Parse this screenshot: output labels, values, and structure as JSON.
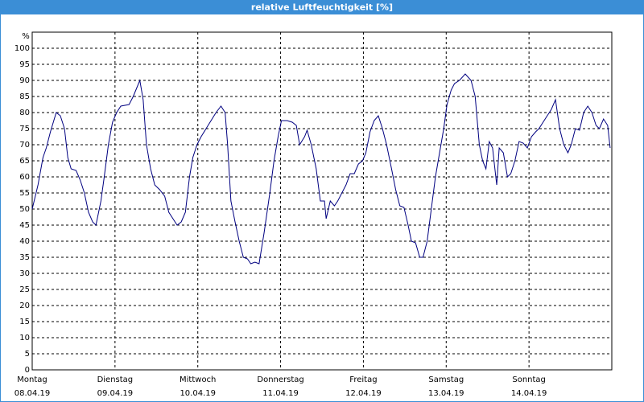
{
  "chart_data": {
    "type": "line",
    "title": "relative Luftfeuchtigkeit [%]",
    "ylabel": "%",
    "xlim": [
      0,
      7
    ],
    "ylim": [
      0,
      105
    ],
    "xticks": [
      {
        "value": 0,
        "label": "Montag"
      },
      {
        "value": 1,
        "label": "Dienstag"
      },
      {
        "value": 2,
        "label": "Mittwoch"
      },
      {
        "value": 3,
        "label": "Donnerstag"
      },
      {
        "value": 4,
        "label": "Freitag"
      },
      {
        "value": 5,
        "label": "Samstag"
      },
      {
        "value": 6,
        "label": "Sonntag"
      }
    ],
    "xtick_dates": [
      "08.04.19",
      "09.04.19",
      "10.04.19",
      "11.04.19",
      "12.04.19",
      "13.04.19",
      "14.04.19"
    ],
    "yticks": [
      0,
      5,
      10,
      15,
      20,
      25,
      30,
      35,
      40,
      45,
      50,
      55,
      60,
      65,
      70,
      75,
      80,
      85,
      90,
      95,
      100
    ],
    "grid": true,
    "series": [
      {
        "color": "#000080",
        "x": [
          0,
          0.07,
          0.13,
          0.17,
          0.22,
          0.29,
          0.34,
          0.39,
          0.43,
          0.47,
          0.53,
          0.58,
          0.63,
          0.68,
          0.73,
          0.77,
          0.83,
          0.87,
          0.92,
          0.97,
          1.02,
          1.07,
          1.17,
          1.22,
          1.26,
          1.3,
          1.34,
          1.38,
          1.43,
          1.48,
          1.54,
          1.6,
          1.65,
          1.7,
          1.75,
          1.8,
          1.85,
          1.9,
          1.94,
          1.99,
          2.04,
          2.1,
          2.16,
          2.22,
          2.28,
          2.33,
          2.36,
          2.4,
          2.45,
          2.5,
          2.55,
          2.6,
          2.64,
          2.69,
          2.74,
          2.8,
          2.87,
          2.92,
          2.97,
          3.01,
          3.08,
          3.14,
          3.19,
          3.23,
          3.29,
          3.32,
          3.37,
          3.43,
          3.48,
          3.53,
          3.55,
          3.6,
          3.65,
          3.69,
          3.74,
          3.79,
          3.84,
          3.89,
          3.94,
          3.99,
          4.03,
          4.08,
          4.13,
          4.18,
          4.23,
          4.28,
          4.34,
          4.39,
          4.44,
          4.49,
          4.54,
          4.58,
          4.63,
          4.68,
          4.72,
          4.77,
          4.82,
          4.87,
          4.92,
          4.97,
          5.01,
          5.06,
          5.1,
          5.16,
          5.23,
          5.3,
          5.35,
          5.4,
          5.44,
          5.48,
          5.52,
          5.56,
          5.61,
          5.64,
          5.69,
          5.74,
          5.78,
          5.83,
          5.88,
          5.93,
          5.98,
          6.03,
          6.08,
          6.12,
          6.17,
          6.22,
          6.27,
          6.32,
          6.37,
          6.42,
          6.47,
          6.51,
          6.56,
          6.61,
          6.66,
          6.71,
          6.76,
          6.81,
          6.85,
          6.9,
          6.95,
          6.98
        ],
        "values": [
          50,
          57.5,
          66,
          69,
          74,
          80,
          79,
          75,
          66,
          62.5,
          62,
          59,
          55,
          49,
          46,
          45,
          52.5,
          60,
          70,
          77,
          80,
          82,
          82.5,
          85,
          87.5,
          90,
          84,
          70,
          62.5,
          57.5,
          56,
          54,
          49,
          47,
          45,
          46,
          49,
          60,
          66,
          70,
          72.5,
          75,
          77.5,
          80,
          82,
          80,
          70,
          52.5,
          46,
          40,
          35,
          34.5,
          33,
          33.5,
          33,
          42.5,
          55,
          65,
          72.5,
          77.5,
          77.5,
          77,
          76,
          70,
          72.5,
          74.5,
          70,
          62.5,
          52.5,
          52.5,
          47,
          52.5,
          51,
          52.5,
          55,
          57.5,
          61,
          61,
          64,
          65,
          67.5,
          74,
          77.5,
          79,
          75,
          70,
          62.5,
          56,
          51,
          50.5,
          45,
          40,
          39.5,
          35,
          35,
          40,
          50,
          60,
          67.5,
          75,
          82.5,
          87,
          89,
          90,
          92,
          90,
          85,
          70,
          65,
          62.5,
          71,
          69,
          57.5,
          69,
          67.5,
          60,
          61,
          65,
          71,
          70.5,
          69,
          72.5,
          74,
          75,
          77,
          79,
          81,
          84,
          75,
          70,
          67.5,
          70,
          75,
          74.5,
          80,
          82,
          80,
          76,
          75,
          78,
          76,
          69
        ]
      }
    ]
  }
}
